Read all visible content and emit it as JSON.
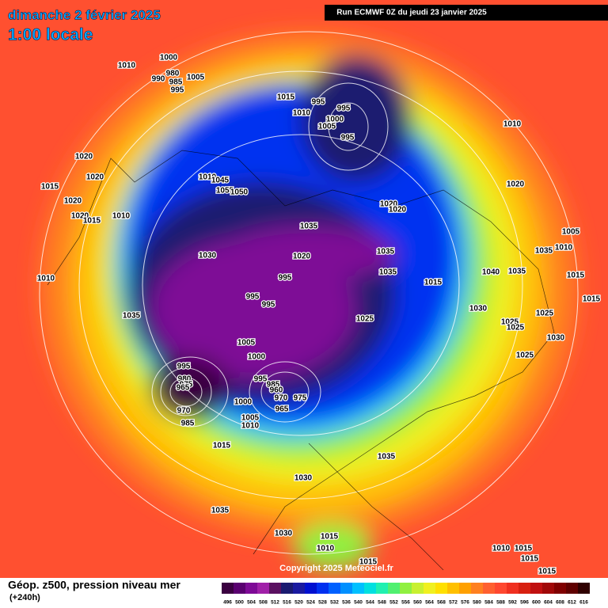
{
  "header": {
    "title": "dimanche 2 février 2025",
    "time": "1:00 locale",
    "run": "Run ECMWF 0Z du jeudi 23 janvier 2025"
  },
  "footer": {
    "product": "Géop. z500, pression niveau mer",
    "lead": "(+240h)",
    "copyright": "Copyright 2025 Meteociel.fr"
  },
  "legend": {
    "levels": [
      496,
      500,
      504,
      508,
      512,
      516,
      520,
      524,
      528,
      532,
      536,
      540,
      544,
      548,
      552,
      556,
      560,
      564,
      568,
      572,
      576,
      580,
      584,
      588,
      592,
      596,
      600,
      604,
      608,
      612,
      616
    ],
    "colors": [
      "#3a0040",
      "#5a0070",
      "#7e0a96",
      "#a020a8",
      "#5a1060",
      "#1a1a70",
      "#1a1aa0",
      "#0010d0",
      "#0030f0",
      "#0060ff",
      "#0090ff",
      "#00c0ff",
      "#00e0e0",
      "#20f0b0",
      "#50f070",
      "#90f040",
      "#c8f030",
      "#f0f020",
      "#ffe000",
      "#ffc000",
      "#ffa000",
      "#ff8020",
      "#ff6030",
      "#ff4830",
      "#f03020",
      "#d82010",
      "#c01010",
      "#a00808",
      "#800000",
      "#600000",
      "#300000"
    ]
  },
  "isobars": [
    1010,
    1000,
    980,
    990,
    985,
    1005,
    995,
    1015,
    995,
    995,
    1010,
    1000,
    1005,
    995,
    1010,
    1020,
    1020,
    1015,
    1020,
    1020,
    1015,
    1010,
    1010,
    1045,
    1055,
    1050,
    1020,
    1020,
    1020,
    1035,
    1035,
    1030,
    1020,
    1005,
    1035,
    1010,
    1040,
    1035,
    1015,
    1035,
    995,
    1015,
    995,
    995,
    1030,
    1015,
    1035,
    1025,
    1025,
    1025,
    1025,
    1010,
    1005,
    1000,
    1025,
    1030,
    995,
    980,
    975,
    965,
    995,
    985,
    960,
    970,
    975,
    965,
    970,
    985,
    1000,
    1005,
    1010,
    1015,
    1035,
    1030,
    1035,
    1030,
    1015,
    1010,
    1015,
    1010,
    1015,
    1015,
    1015
  ]
}
